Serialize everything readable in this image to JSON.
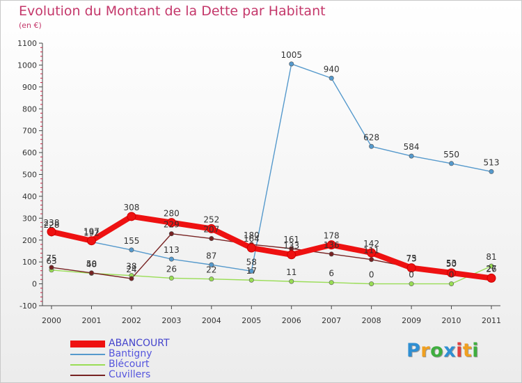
{
  "header": {
    "title": "Evolution du Montant de la Dette par Habitant",
    "unit": "(en €)"
  },
  "brand": {
    "letters": [
      "P",
      "r",
      "o",
      "x",
      "i",
      "t",
      "i"
    ],
    "colors": [
      "#2f8fd3",
      "#f0a020",
      "#3fae3f",
      "#2f8fd3",
      "#e04040",
      "#f0a020",
      "#3fae3f"
    ]
  },
  "chart_data": {
    "type": "line",
    "title": "Evolution du Montant de la Dette par Habitant",
    "ylabel": "(en €)",
    "x": [
      "2000",
      "2001",
      "2002",
      "2003",
      "2004",
      "2005",
      "2006",
      "2007",
      "2008",
      "2009",
      "2010",
      "2011"
    ],
    "ylim": [
      -100,
      1100
    ],
    "yticks": [
      -100,
      0,
      100,
      200,
      300,
      400,
      500,
      600,
      700,
      800,
      900,
      1000,
      1100
    ],
    "grid": false,
    "legend_position": "bottom-left",
    "series": [
      {
        "name": "ABANCOURT",
        "color": "#ee1111",
        "values": [
          238,
          197,
          308,
          280,
          252,
          164,
          133,
          178,
          142,
          73,
          50,
          26
        ],
        "labels": [
          "238",
          "197",
          "308",
          "280",
          "252",
          "164",
          "133",
          "178",
          "142",
          "73",
          "50",
          "26"
        ]
      },
      {
        "name": "Bantigny",
        "color": "#5599cc",
        "values": [
          228,
          192,
          155,
          113,
          87,
          58,
          1005,
          940,
          628,
          584,
          550,
          513
        ],
        "labels": [
          "228",
          "192",
          "155",
          "113",
          "87",
          "58",
          "1005",
          "940",
          "628",
          "584",
          "550",
          "513"
        ]
      },
      {
        "name": "Blécourt",
        "color": "#99dd55",
        "values": [
          63,
          48,
          38,
          26,
          22,
          17,
          11,
          6,
          0,
          0,
          0,
          81
        ],
        "labels": [
          "63",
          "48",
          "38",
          "26",
          "22",
          "17",
          "11",
          "6",
          "0",
          "0",
          "0",
          "81"
        ]
      },
      {
        "name": "Cuvillers",
        "color": "#772222",
        "values": [
          75,
          50,
          24,
          229,
          207,
          180,
          161,
          136,
          111,
          75,
          53,
          27
        ],
        "labels": [
          "75",
          "50",
          "24",
          "229",
          "207",
          "180",
          "161",
          "136",
          "111",
          "75",
          "53",
          "27"
        ]
      }
    ]
  }
}
